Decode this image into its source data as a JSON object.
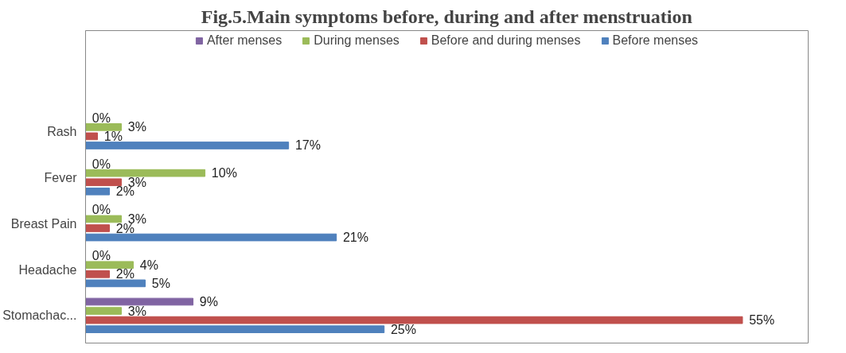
{
  "chart_data": {
    "type": "bar",
    "orientation": "horizontal",
    "title": "Fig.5.Main symptoms before, during and after menstruation",
    "categories": [
      "Rash",
      "Fever",
      "Breast Pain",
      "Headache",
      "Stomachac..."
    ],
    "series": [
      {
        "name": "After menses",
        "color": "#8064a2",
        "values": [
          0,
          0,
          0,
          0,
          9
        ],
        "value_labels": [
          "0%",
          "0%",
          "0%",
          "0%",
          "9%"
        ]
      },
      {
        "name": "During menses",
        "color": "#9bbb59",
        "values": [
          3,
          10,
          3,
          4,
          3
        ],
        "value_labels": [
          "3%",
          "10%",
          "3%",
          "4%",
          "3%"
        ]
      },
      {
        "name": "Before and during menses",
        "color": "#c0504d",
        "values": [
          1,
          3,
          2,
          2,
          55
        ],
        "value_labels": [
          "1%",
          "3%",
          "2%",
          "2%",
          "55%"
        ]
      },
      {
        "name": "Before menses",
        "color": "#4f81bd",
        "values": [
          17,
          2,
          21,
          5,
          25
        ],
        "value_labels": [
          "17%",
          "2%",
          "21%",
          "5%",
          "25%"
        ]
      }
    ],
    "legend": "top",
    "grid": false
  }
}
